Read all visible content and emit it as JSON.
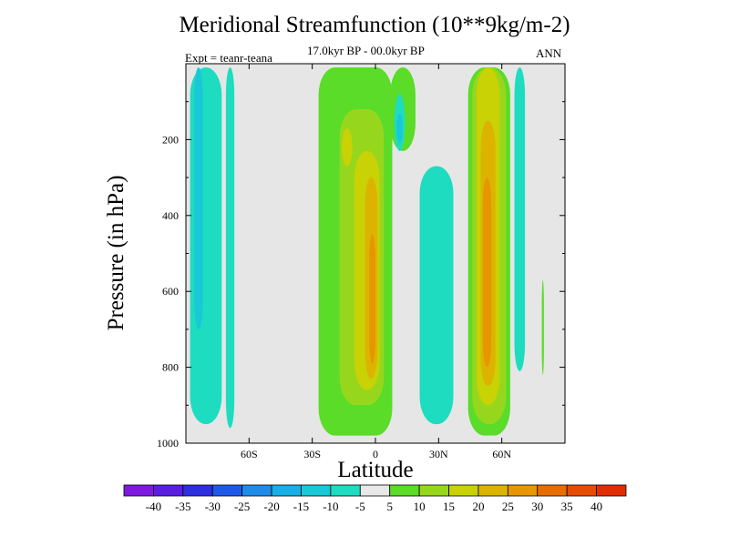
{
  "title": "Meridional Streamfunction (10**9kg/m-2)",
  "subtitle": "17.0kyr BP - 00.0kyr BP",
  "expt_label": "Expt = teanr-teana",
  "season": "ANN",
  "chart_data": {
    "type": "contour",
    "title": "Meridional Streamfunction (10**9kg/m-2)",
    "subtitle": "17.0kyr BP - 00.0kyr BP",
    "xlabel": "Latitude",
    "ylabel": "Pressure (in hPa)",
    "xlim": [
      -90,
      90
    ],
    "ylim": [
      1000,
      0
    ],
    "x_ticks": [
      -60,
      -30,
      0,
      30,
      60
    ],
    "x_tick_labels": [
      "60S",
      "30S",
      "0",
      "30N",
      "60N"
    ],
    "y_ticks": [
      200,
      400,
      600,
      800,
      1000
    ],
    "y_tick_labels": [
      "200",
      "400",
      "600",
      "800",
      "1000"
    ],
    "colorbar": {
      "labels": [
        "-40",
        "-35",
        "-30",
        "-25",
        "-20",
        "-15",
        "-10",
        "-5",
        "5",
        "10",
        "15",
        "20",
        "25",
        "30",
        "35",
        "40"
      ],
      "colors": [
        "#7f19e0",
        "#5a1ee0",
        "#2d2ee0",
        "#1e5ae8",
        "#1e8ce8",
        "#19aee6",
        "#19c8d7",
        "#1edcc0",
        "#e8e8e8",
        "#5adc28",
        "#96d71e",
        "#c8d205",
        "#dcb400",
        "#e69600",
        "#e66e00",
        "#e64b00",
        "#e12d00"
      ]
    },
    "background_color": "#e6e6e6",
    "regions": [
      {
        "level": "-10 to -5",
        "lat_range": [
          -88,
          -73
        ],
        "p_range": [
          10,
          950
        ],
        "color": "#1edcc0"
      },
      {
        "level": "-15 to -10",
        "lat_range": [
          -86,
          -82
        ],
        "p_range": [
          10,
          700
        ],
        "color": "#19c8d7"
      },
      {
        "level": "-10 to -5",
        "lat_range": [
          -71,
          -67
        ],
        "p_range": [
          10,
          960
        ],
        "color": "#1edcc0"
      },
      {
        "level": "5 to 10",
        "lat_range": [
          -27,
          8
        ],
        "p_range": [
          10,
          980
        ],
        "color": "#5adc28"
      },
      {
        "level": "10 to 15",
        "lat_range": [
          -17,
          4
        ],
        "p_range": [
          120,
          900
        ],
        "color": "#96d71e"
      },
      {
        "level": "15 to 20",
        "lat_range": [
          -10,
          2
        ],
        "p_range": [
          230,
          860
        ],
        "color": "#c8d205"
      },
      {
        "level": "20 to 25",
        "lat_range": [
          -5,
          1
        ],
        "p_range": [
          300,
          830
        ],
        "color": "#dcb400"
      },
      {
        "level": "25 to 30",
        "lat_range": [
          -3,
          0
        ],
        "p_range": [
          450,
          790
        ],
        "color": "#e69600"
      },
      {
        "level": "15 to 20",
        "lat_range": [
          -16,
          -11
        ],
        "p_range": [
          170,
          270
        ],
        "color": "#c8d205"
      },
      {
        "level": "5 to 10",
        "lat_range": [
          7,
          19
        ],
        "p_range": [
          10,
          230
        ],
        "color": "#5adc28"
      },
      {
        "level": "-10 to -5",
        "lat_range": [
          9,
          14
        ],
        "p_range": [
          80,
          230
        ],
        "color": "#1edcc0"
      },
      {
        "level": "-15 to -10",
        "lat_range": [
          10,
          13
        ],
        "p_range": [
          130,
          210
        ],
        "color": "#19c8d7"
      },
      {
        "level": "-10 to -5",
        "lat_range": [
          21,
          37
        ],
        "p_range": [
          270,
          950
        ],
        "color": "#1edcc0"
      },
      {
        "level": "5 to 10",
        "lat_range": [
          44,
          64
        ],
        "p_range": [
          10,
          980
        ],
        "color": "#5adc28"
      },
      {
        "level": "10 to 15",
        "lat_range": [
          46,
          62
        ],
        "p_range": [
          10,
          950
        ],
        "color": "#96d71e"
      },
      {
        "level": "15 to 20",
        "lat_range": [
          48,
          59
        ],
        "p_range": [
          10,
          900
        ],
        "color": "#c8d205"
      },
      {
        "level": "20 to 25",
        "lat_range": [
          50,
          57
        ],
        "p_range": [
          150,
          850
        ],
        "color": "#dcb400"
      },
      {
        "level": "25 to 30",
        "lat_range": [
          51,
          55
        ],
        "p_range": [
          300,
          800
        ],
        "color": "#e69600"
      },
      {
        "level": "-10 to -5",
        "lat_range": [
          66,
          71
        ],
        "p_range": [
          10,
          810
        ],
        "color": "#1edcc0"
      },
      {
        "level": "5 to 10",
        "lat_range": [
          79,
          80
        ],
        "p_range": [
          570,
          820
        ],
        "color": "#5adc28"
      }
    ]
  }
}
